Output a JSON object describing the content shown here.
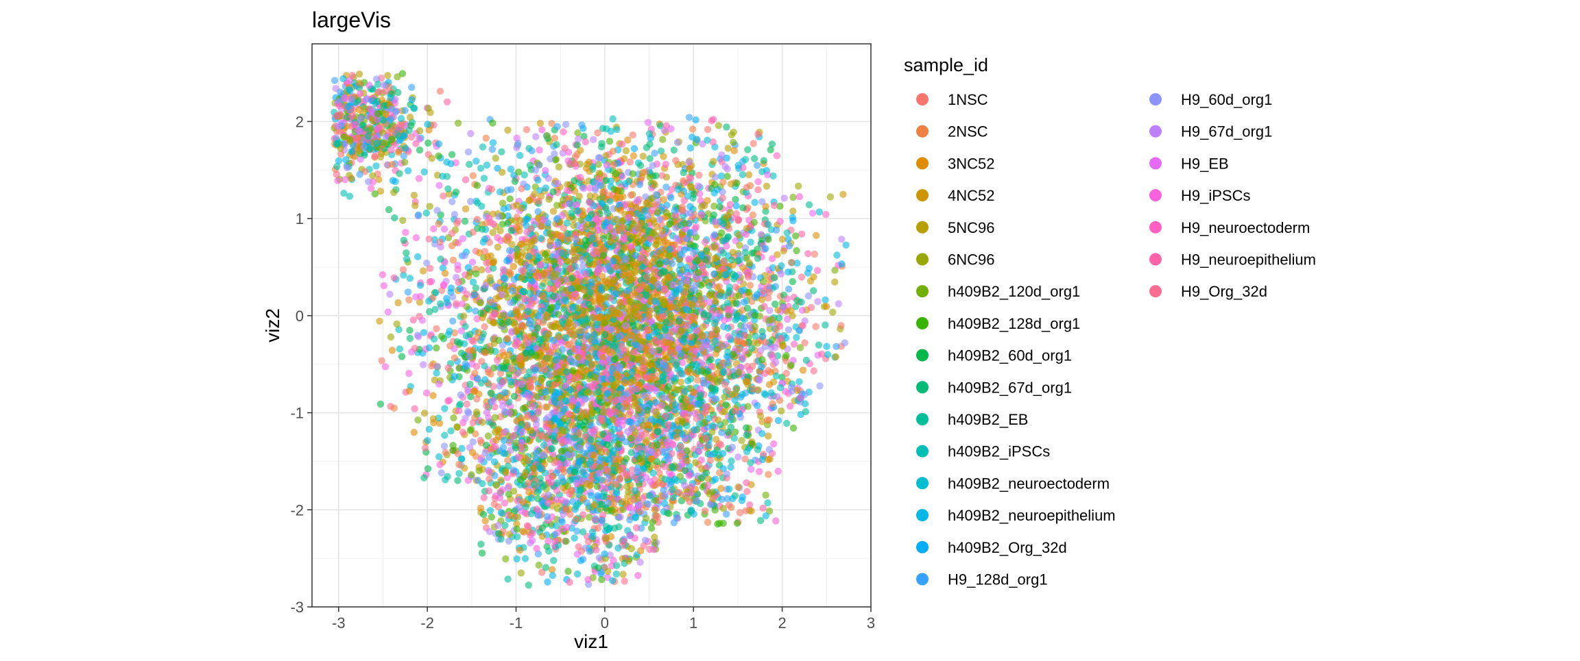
{
  "chart_data": {
    "type": "scatter",
    "title": "largeVis",
    "xlabel": "viz1",
    "ylabel": "viz2",
    "xlim": [
      -3.3,
      3.0
    ],
    "ylim": [
      -3.0,
      2.8
    ],
    "xticks": [
      -3,
      -2,
      -1,
      0,
      1,
      2,
      3
    ],
    "yticks": [
      -3,
      -2,
      -1,
      0,
      1,
      2
    ],
    "grid": true,
    "legend": {
      "title": "sample_id",
      "placement": "right",
      "columns": 2
    },
    "marker_alpha": 0.6,
    "series": [
      {
        "name": "1NSC",
        "color": "#F8766D"
      },
      {
        "name": "2NSC",
        "color": "#EE8043"
      },
      {
        "name": "3NC52",
        "color": "#E08B00"
      },
      {
        "name": "4NC52",
        "color": "#CD9600"
      },
      {
        "name": "5NC96",
        "color": "#B69F00"
      },
      {
        "name": "6NC96",
        "color": "#99A800"
      },
      {
        "name": "h409B2_120d_org1",
        "color": "#74AE00"
      },
      {
        "name": "h409B2_128d_org1",
        "color": "#38B300"
      },
      {
        "name": "h409B2_60d_org1",
        "color": "#00B74A"
      },
      {
        "name": "h409B2_67d_org1",
        "color": "#00BB78"
      },
      {
        "name": "h409B2_EB",
        "color": "#00BE99"
      },
      {
        "name": "h409B2_iPSCs",
        "color": "#00BFB5"
      },
      {
        "name": "h409B2_neuroectoderm",
        "color": "#00BDCF"
      },
      {
        "name": "h409B2_neuroepithelium",
        "color": "#00B7E5"
      },
      {
        "name": "h409B2_Org_32d",
        "color": "#00ADF8"
      },
      {
        "name": "H9_128d_org1",
        "color": "#35A2FF"
      },
      {
        "name": "H9_60d_org1",
        "color": "#8B93FF"
      },
      {
        "name": "H9_67d_org1",
        "color": "#BE80FF"
      },
      {
        "name": "H9_EB",
        "color": "#E56BF6"
      },
      {
        "name": "H9_iPSCs",
        "color": "#FA62DB"
      },
      {
        "name": "H9_neuroectoderm",
        "color": "#FF61C3"
      },
      {
        "name": "H9_neuroepithelium",
        "color": "#FF63A9"
      },
      {
        "name": "H9_Org_32d",
        "color": "#FF6C91"
      }
    ]
  }
}
